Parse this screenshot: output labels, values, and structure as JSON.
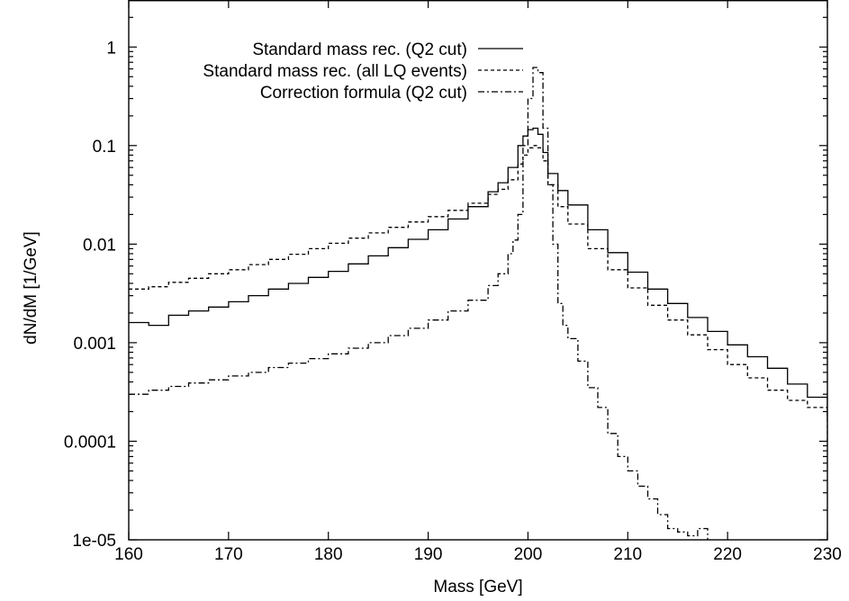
{
  "chart_data": {
    "type": "line",
    "title": "",
    "xlabel": "Mass [GeV]",
    "ylabel": "dN/dM [1/GeV]",
    "xlim": [
      160,
      230
    ],
    "ylim": [
      1e-05,
      3
    ],
    "yscale": "log",
    "grid": false,
    "legend_position": "top-left",
    "x_ticks": [
      160,
      170,
      180,
      190,
      200,
      210,
      220,
      230
    ],
    "x_tick_labels": [
      "160",
      "170",
      "180",
      "190",
      "200",
      "210",
      "220",
      "230"
    ],
    "y_ticks": [
      1e-05,
      0.0001,
      0.001,
      0.01,
      0.1,
      1
    ],
    "y_tick_labels": [
      "1e-05",
      "0.0001",
      "0.001",
      "0.01",
      "0.1",
      "1"
    ],
    "series": [
      {
        "name": "Standard mass rec. (Q2 cut)",
        "style": "solid",
        "x": [
          160,
          162,
          164,
          166,
          168,
          170,
          172,
          174,
          176,
          178,
          180,
          182,
          184,
          186,
          188,
          190,
          192,
          194,
          196,
          197,
          198,
          199,
          199.5,
          200,
          200.5,
          201,
          201.5,
          202,
          203,
          204,
          206,
          208,
          210,
          212,
          214,
          216,
          218,
          220,
          222,
          224,
          226,
          228,
          230
        ],
        "y": [
          0.0016,
          0.0015,
          0.0019,
          0.0021,
          0.0023,
          0.0026,
          0.003,
          0.0035,
          0.004,
          0.0046,
          0.0053,
          0.0063,
          0.0076,
          0.0092,
          0.0112,
          0.014,
          0.018,
          0.024,
          0.034,
          0.042,
          0.06,
          0.1,
          0.125,
          0.145,
          0.15,
          0.13,
          0.085,
          0.052,
          0.035,
          0.025,
          0.014,
          0.0082,
          0.0052,
          0.0035,
          0.0025,
          0.0018,
          0.0013,
          0.00095,
          0.00072,
          0.00055,
          0.00038,
          0.00028,
          0.00017
        ]
      },
      {
        "name": "Standard mass rec. (all LQ events)",
        "style": "dashed",
        "x": [
          160,
          162,
          164,
          166,
          168,
          170,
          172,
          174,
          176,
          178,
          180,
          182,
          184,
          186,
          188,
          190,
          192,
          194,
          196,
          197,
          198,
          199,
          199.5,
          200,
          200.5,
          201,
          201.5,
          202,
          203,
          204,
          206,
          208,
          210,
          212,
          214,
          216,
          218,
          220,
          222,
          224,
          226,
          228,
          230
        ],
        "y": [
          0.0035,
          0.0037,
          0.0041,
          0.0045,
          0.005,
          0.0055,
          0.0062,
          0.007,
          0.0079,
          0.009,
          0.0102,
          0.0115,
          0.013,
          0.0148,
          0.0168,
          0.019,
          0.022,
          0.026,
          0.032,
          0.036,
          0.045,
          0.065,
          0.08,
          0.095,
          0.1,
          0.095,
          0.07,
          0.04,
          0.024,
          0.016,
          0.009,
          0.0055,
          0.0036,
          0.0024,
          0.0017,
          0.0012,
          0.00085,
          0.0006,
          0.00044,
          0.00033,
          0.00026,
          0.00022,
          0.0001
        ]
      },
      {
        "name": "Correction formula (Q2 cut)",
        "style": "dashdot",
        "x": [
          160,
          162,
          164,
          166,
          168,
          170,
          172,
          174,
          176,
          178,
          180,
          182,
          184,
          186,
          188,
          190,
          192,
          194,
          196,
          197,
          198,
          198.5,
          199,
          199.5,
          200,
          200.5,
          201,
          201.5,
          202,
          202.5,
          203,
          203.5,
          204,
          205,
          206,
          207,
          208,
          209,
          210,
          211,
          212,
          213,
          214,
          215,
          216,
          217,
          218
        ],
        "y": [
          0.0003,
          0.00033,
          0.00036,
          0.00039,
          0.00042,
          0.00046,
          0.0005,
          0.00056,
          0.00062,
          0.00069,
          0.00077,
          0.00088,
          0.001,
          0.00118,
          0.0014,
          0.0017,
          0.0021,
          0.0027,
          0.0038,
          0.005,
          0.008,
          0.011,
          0.02,
          0.1,
          0.3,
          0.62,
          0.55,
          0.15,
          0.04,
          0.01,
          0.0025,
          0.0015,
          0.0011,
          0.00065,
          0.00035,
          0.00022,
          0.00012,
          7e-05,
          5e-05,
          3.5e-05,
          2.6e-05,
          1.8e-05,
          1.3e-05,
          1.2e-05,
          1.1e-05,
          1.3e-05,
          1e-05
        ]
      }
    ]
  }
}
